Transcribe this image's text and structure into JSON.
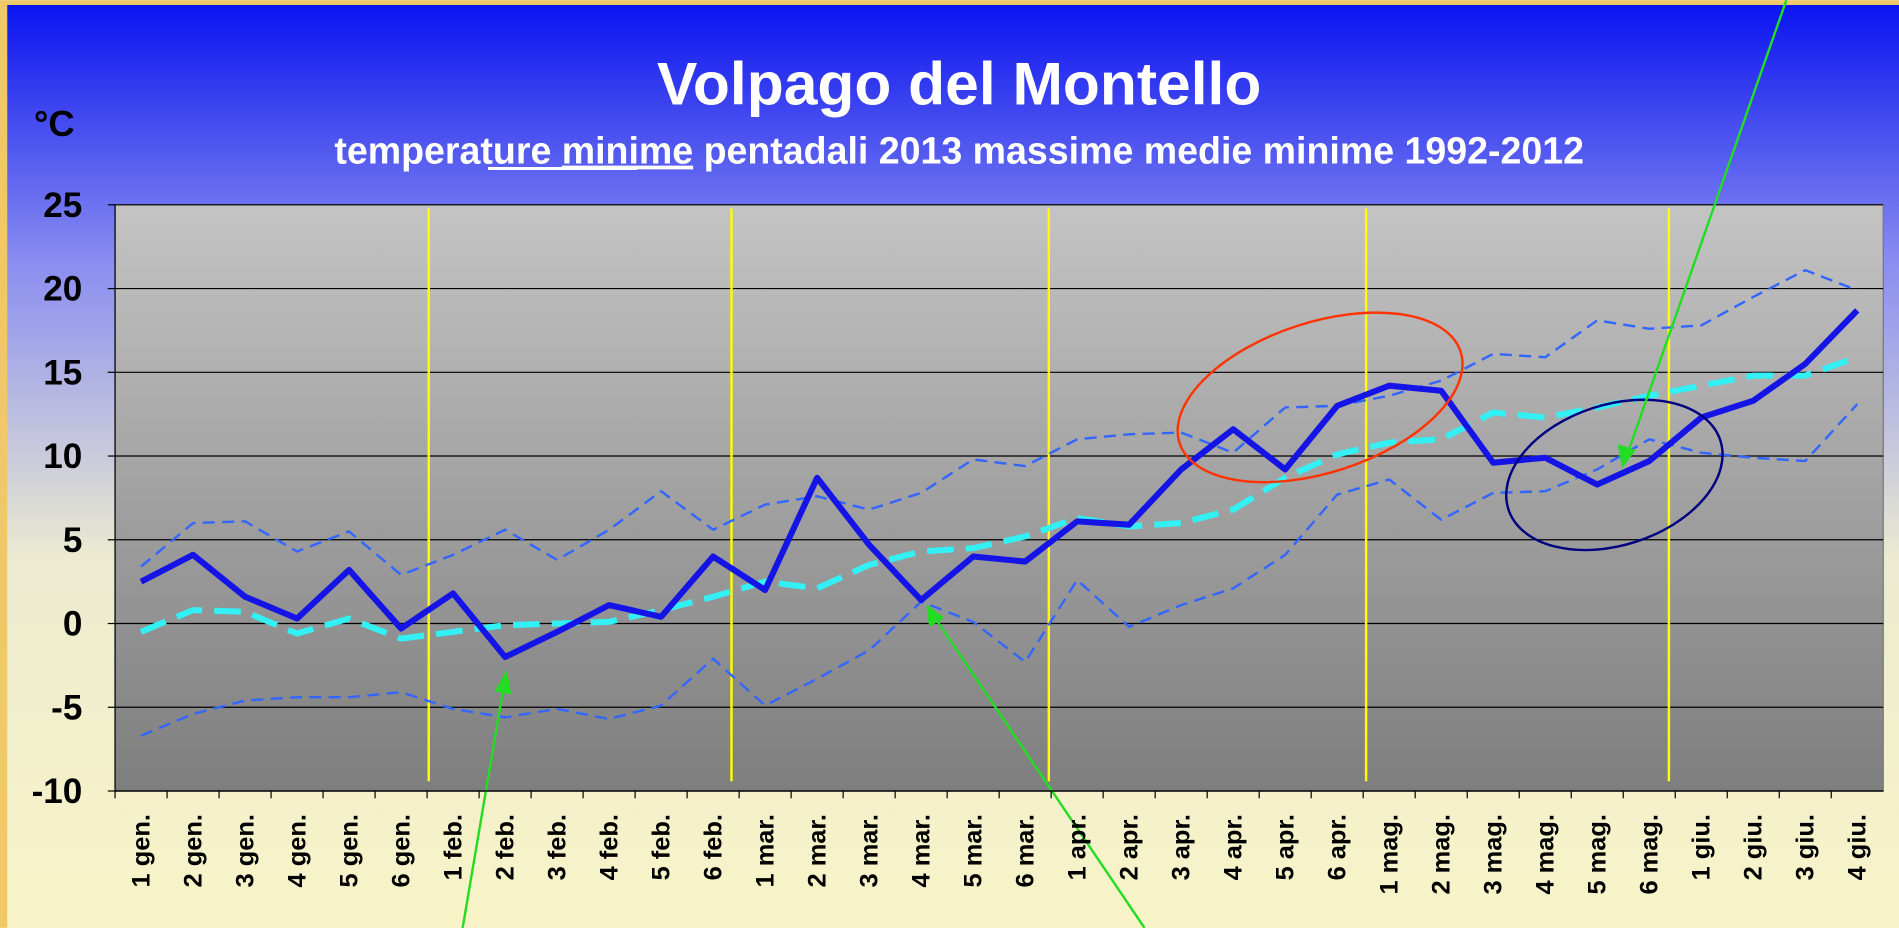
{
  "chart_data": {
    "type": "line",
    "title": "Volpago del Montello",
    "subtitle": [
      "temperature ",
      "minime",
      " pentadali 2013  massime medie minime 1992-2012"
    ],
    "y_label": "°C",
    "categories": [
      "1 gen.",
      "2 gen.",
      "3 gen.",
      "4 gen.",
      "5 gen.",
      "6 gen.",
      "1 feb.",
      "2 feb.",
      "3 feb.",
      "4 feb.",
      "5 feb.",
      "6 feb.",
      "1 mar.",
      "2 mar.",
      "3 mar.",
      "4 mar.",
      "5 mar.",
      "6 mar.",
      "1 apr.",
      "2 apr.",
      "3 apr.",
      "4 apr.",
      "5 apr.",
      "6 apr.",
      "1 mag.",
      "2 mag.",
      "3 mag.",
      "4 mag.",
      "5 mag.",
      "6 mag.",
      "1 giu.",
      "2 giu.",
      "3 giu.",
      "4 giu."
    ],
    "series": [
      {
        "color": "#3366ff",
        "dashed": true,
        "width": 2,
        "values": [
          3.4,
          6.0,
          6.1,
          4.3,
          5.5,
          2.9,
          4.1,
          5.6,
          3.8,
          5.6,
          7.9,
          5.6,
          7.1,
          7.6,
          6.8,
          7.8,
          9.8,
          9.4,
          11.0,
          11.3,
          11.4,
          10.2,
          12.9,
          13.0,
          13.6,
          14.5,
          16.1,
          15.9,
          18.1,
          17.6,
          17.8,
          19.5,
          21.1,
          19.9
        ]
      },
      {
        "color": "#3366ff",
        "dashed": true,
        "width": 2,
        "values": [
          -6.7,
          -5.4,
          -4.6,
          -4.4,
          -4.4,
          -4.1,
          -5.1,
          -5.6,
          -5.1,
          -5.7,
          -4.9,
          -2.1,
          -4.9,
          -3.3,
          -1.6,
          1.3,
          0.1,
          -2.3,
          2.6,
          -0.2,
          1.1,
          2.1,
          4.1,
          7.7,
          8.6,
          6.2,
          7.8,
          7.9,
          9.2,
          11.0,
          10.2,
          9.9,
          9.7,
          13.1
        ]
      },
      {
        "color": "#33f0f5",
        "dashed": true,
        "width": 5,
        "values": [
          -0.5,
          0.8,
          0.7,
          -0.6,
          0.3,
          -0.9,
          -0.5,
          -0.1,
          0.0,
          0.1,
          0.8,
          1.6,
          2.5,
          2.1,
          3.5,
          4.3,
          4.5,
          5.2,
          6.3,
          5.8,
          6.0,
          6.8,
          8.7,
          10.1,
          10.8,
          11.0,
          12.6,
          12.3,
          12.9,
          13.6,
          14.2,
          14.8,
          14.8,
          15.9
        ]
      },
      {
        "color": "#1414e6",
        "dashed": false,
        "width": 5,
        "values": [
          2.5,
          4.1,
          1.6,
          0.3,
          3.2,
          -0.3,
          1.8,
          -2.0,
          -0.5,
          1.1,
          0.4,
          4.0,
          2.0,
          8.7,
          4.7,
          1.4,
          4.0,
          3.7,
          6.1,
          5.9,
          9.2,
          11.6,
          9.2,
          13.0,
          14.2,
          13.9,
          9.6,
          9.9,
          8.3,
          9.7,
          12.3,
          13.3,
          15.5,
          18.7
        ]
      }
    ],
    "ylim": [
      -10,
      25
    ],
    "yticks": [
      25,
      20,
      15,
      10,
      5,
      0,
      -5,
      -10
    ],
    "grid": true
  }
}
